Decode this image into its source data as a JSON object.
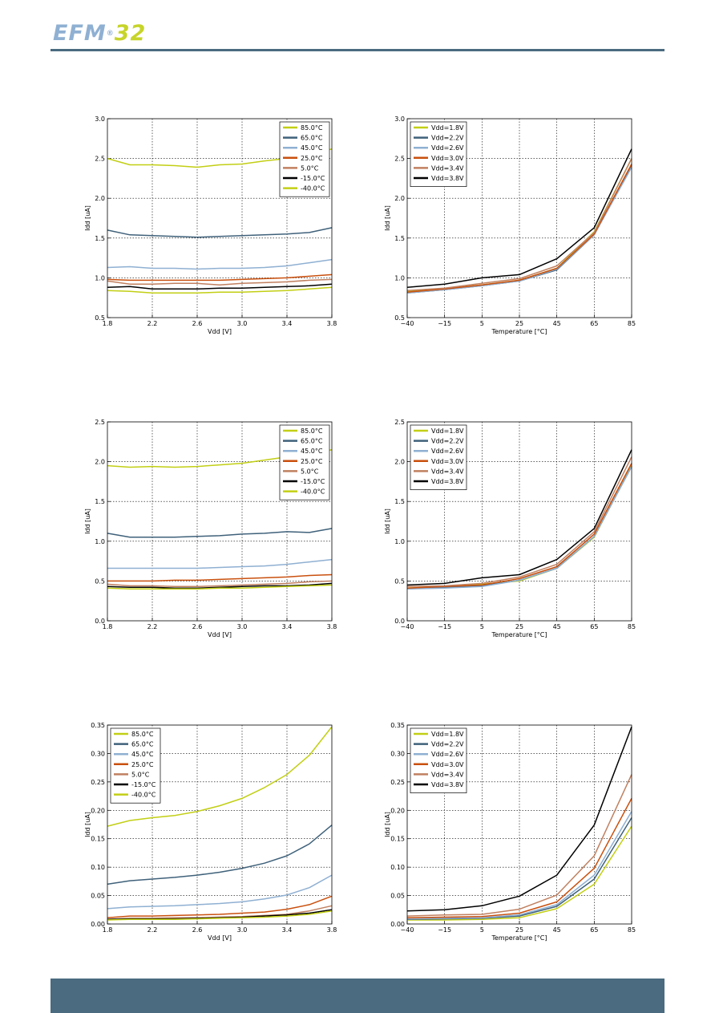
{
  "header": {
    "logo_text": "EFM",
    "logo_reg": "®",
    "logo_num": "32",
    "colors": {
      "logo_primary": "#8fb0d2",
      "logo_accent": "#c7d42a",
      "rule": "#4a6b80"
    }
  },
  "footer": {
    "color": "#4a6b80"
  },
  "series_colors": {
    "temperature": [
      "#c2cf14",
      "#3f617a",
      "#8fb0d2",
      "#c9500e",
      "#c08060",
      "#000000",
      "#c2cf14"
    ],
    "voltage": [
      "#c2cf14",
      "#3f617a",
      "#8fb0d2",
      "#c9500e",
      "#c08060",
      "#000000"
    ]
  },
  "chart_data": [
    {
      "type": "line",
      "grid": true,
      "legend_position": "top-right",
      "xlabel": "Vdd [V]",
      "ylabel": "Idd [uA]",
      "xlim": [
        1.8,
        3.8
      ],
      "ylim": [
        0.5,
        3.0
      ],
      "xticks": [
        "1.8",
        "2.2",
        "2.6",
        "3.0",
        "3.4",
        "3.8"
      ],
      "yticks": [
        "0.5",
        "1.0",
        "1.5",
        "2.0",
        "2.5",
        "3.0"
      ],
      "x": [
        1.8,
        2.0,
        2.2,
        2.4,
        2.6,
        2.8,
        3.0,
        3.2,
        3.4,
        3.6,
        3.8
      ],
      "series": [
        {
          "name": "85.0°C",
          "values": [
            2.5,
            2.42,
            2.42,
            2.41,
            2.39,
            2.42,
            2.43,
            2.47,
            2.5,
            2.54,
            2.62
          ]
        },
        {
          "name": "65.0°C",
          "values": [
            1.6,
            1.54,
            1.53,
            1.52,
            1.51,
            1.52,
            1.53,
            1.54,
            1.55,
            1.57,
            1.63
          ]
        },
        {
          "name": "45.0°C",
          "values": [
            1.13,
            1.14,
            1.12,
            1.12,
            1.11,
            1.12,
            1.12,
            1.13,
            1.15,
            1.19,
            1.23
          ]
        },
        {
          "name": "25.0°C",
          "values": [
            0.98,
            0.97,
            0.97,
            0.97,
            0.97,
            0.97,
            0.98,
            0.99,
            1.0,
            1.02,
            1.04
          ]
        },
        {
          "name": "5.0°C",
          "values": [
            0.96,
            0.92,
            0.92,
            0.93,
            0.93,
            0.91,
            0.93,
            0.94,
            0.95,
            0.97,
            0.98
          ]
        },
        {
          "name": "-15.0°C",
          "values": [
            0.88,
            0.89,
            0.86,
            0.86,
            0.86,
            0.87,
            0.87,
            0.88,
            0.89,
            0.9,
            0.92
          ]
        },
        {
          "name": "-40.0°C",
          "values": [
            0.84,
            0.83,
            0.81,
            0.81,
            0.81,
            0.82,
            0.82,
            0.83,
            0.84,
            0.86,
            0.88
          ]
        }
      ]
    },
    {
      "type": "line",
      "grid": true,
      "legend_position": "top-left",
      "xlabel": "Temperature [°C]",
      "ylabel": "Idd [uA]",
      "ylim": [
        0.5,
        3.0
      ],
      "xticks": [
        "−40",
        "−15",
        "5",
        "25",
        "45",
        "65",
        "85"
      ],
      "yticks": [
        "0.5",
        "1.0",
        "1.5",
        "2.0",
        "2.5",
        "3.0"
      ],
      "categories": [
        "−40",
        "−15",
        "5",
        "25",
        "45",
        "65",
        "85"
      ],
      "series": [
        {
          "name": "Vdd=1.8V",
          "values": [
            0.83,
            0.86,
            0.91,
            0.97,
            1.12,
            1.58,
            2.5
          ]
        },
        {
          "name": "Vdd=2.2V",
          "values": [
            0.81,
            0.85,
            0.9,
            0.96,
            1.1,
            1.54,
            2.42
          ]
        },
        {
          "name": "Vdd=2.6V",
          "values": [
            0.81,
            0.85,
            0.9,
            0.96,
            1.11,
            1.54,
            2.39
          ]
        },
        {
          "name": "Vdd=3.0V",
          "values": [
            0.82,
            0.86,
            0.91,
            0.97,
            1.12,
            1.55,
            2.43
          ]
        },
        {
          "name": "Vdd=3.4V",
          "values": [
            0.84,
            0.87,
            0.93,
            0.99,
            1.15,
            1.57,
            2.5
          ]
        },
        {
          "name": "Vdd=3.8V",
          "values": [
            0.88,
            0.92,
            1.0,
            1.04,
            1.24,
            1.63,
            2.62
          ]
        }
      ]
    },
    {
      "type": "line",
      "grid": true,
      "legend_position": "top-right",
      "xlabel": "Vdd [V]",
      "ylabel": "Idd [uA]",
      "xlim": [
        1.8,
        3.8
      ],
      "ylim": [
        0.0,
        2.5
      ],
      "xticks": [
        "1.8",
        "2.2",
        "2.6",
        "3.0",
        "3.4",
        "3.8"
      ],
      "yticks": [
        "0.0",
        "0.5",
        "1.0",
        "1.5",
        "2.0",
        "2.5"
      ],
      "x": [
        1.8,
        2.0,
        2.2,
        2.4,
        2.6,
        2.8,
        3.0,
        3.2,
        3.4,
        3.6,
        3.8
      ],
      "series": [
        {
          "name": "85.0°C",
          "values": [
            1.95,
            1.93,
            1.94,
            1.93,
            1.94,
            1.96,
            1.98,
            2.02,
            2.06,
            2.1,
            2.15
          ]
        },
        {
          "name": "65.0°C",
          "values": [
            1.1,
            1.05,
            1.05,
            1.05,
            1.06,
            1.07,
            1.09,
            1.1,
            1.12,
            1.11,
            1.16
          ]
        },
        {
          "name": "45.0°C",
          "values": [
            0.66,
            0.66,
            0.66,
            0.66,
            0.66,
            0.67,
            0.68,
            0.69,
            0.71,
            0.74,
            0.77
          ]
        },
        {
          "name": "25.0°C",
          "values": [
            0.5,
            0.5,
            0.5,
            0.51,
            0.51,
            0.52,
            0.53,
            0.54,
            0.55,
            0.57,
            0.58
          ]
        },
        {
          "name": "5.0°C",
          "values": [
            0.46,
            0.44,
            0.44,
            0.43,
            0.43,
            0.44,
            0.45,
            0.46,
            0.47,
            0.49,
            0.5
          ]
        },
        {
          "name": "-15.0°C",
          "values": [
            0.43,
            0.42,
            0.42,
            0.41,
            0.41,
            0.42,
            0.43,
            0.44,
            0.44,
            0.45,
            0.47
          ]
        },
        {
          "name": "-40.0°C",
          "values": [
            0.41,
            0.4,
            0.4,
            0.4,
            0.4,
            0.41,
            0.41,
            0.42,
            0.43,
            0.44,
            0.45
          ]
        }
      ]
    },
    {
      "type": "line",
      "grid": true,
      "legend_position": "top-left",
      "xlabel": "Temperature [°C]",
      "ylabel": "Idd [uA]",
      "ylim": [
        0.0,
        2.5
      ],
      "xticks": [
        "−40",
        "−15",
        "5",
        "25",
        "45",
        "65",
        "85"
      ],
      "yticks": [
        "0.0",
        "0.5",
        "1.0",
        "1.5",
        "2.0",
        "2.5"
      ],
      "categories": [
        "−40",
        "−15",
        "5",
        "25",
        "45",
        "65",
        "85"
      ],
      "series": [
        {
          "name": "Vdd=1.8V",
          "values": [
            0.41,
            0.43,
            0.46,
            0.5,
            0.66,
            1.05,
            1.95
          ]
        },
        {
          "name": "Vdd=2.2V",
          "values": [
            0.4,
            0.42,
            0.44,
            0.51,
            0.66,
            1.06,
            1.94
          ]
        },
        {
          "name": "Vdd=2.6V",
          "values": [
            0.4,
            0.41,
            0.43,
            0.51,
            0.66,
            1.06,
            1.94
          ]
        },
        {
          "name": "Vdd=3.0V",
          "values": [
            0.41,
            0.43,
            0.45,
            0.53,
            0.68,
            1.09,
            1.98
          ]
        },
        {
          "name": "Vdd=3.4V",
          "values": [
            0.43,
            0.44,
            0.47,
            0.55,
            0.71,
            1.12,
            2.06
          ]
        },
        {
          "name": "Vdd=3.8V",
          "values": [
            0.45,
            0.47,
            0.54,
            0.58,
            0.77,
            1.16,
            2.15
          ]
        }
      ]
    },
    {
      "type": "line",
      "grid": true,
      "legend_position": "top-left",
      "xlabel": "Vdd [V]",
      "ylabel": "Idd [uA]",
      "xlim": [
        1.8,
        3.8
      ],
      "ylim": [
        0.0,
        0.35
      ],
      "xticks": [
        "1.8",
        "2.2",
        "2.6",
        "3.0",
        "3.4",
        "3.8"
      ],
      "yticks": [
        "0.00",
        "0.05",
        "0.10",
        "0.15",
        "0.20",
        "0.25",
        "0.30",
        "0.35"
      ],
      "x": [
        1.8,
        2.0,
        2.2,
        2.4,
        2.6,
        2.8,
        3.0,
        3.2,
        3.4,
        3.6,
        3.8
      ],
      "series": [
        {
          "name": "85.0°C",
          "values": [
            0.172,
            0.182,
            0.187,
            0.191,
            0.198,
            0.208,
            0.221,
            0.24,
            0.263,
            0.297,
            0.347
          ]
        },
        {
          "name": "65.0°C",
          "values": [
            0.07,
            0.076,
            0.079,
            0.082,
            0.086,
            0.091,
            0.098,
            0.107,
            0.12,
            0.141,
            0.174
          ]
        },
        {
          "name": "45.0°C",
          "values": [
            0.027,
            0.03,
            0.031,
            0.032,
            0.034,
            0.036,
            0.039,
            0.044,
            0.051,
            0.064,
            0.086
          ]
        },
        {
          "name": "25.0°C",
          "values": [
            0.011,
            0.014,
            0.014,
            0.015,
            0.016,
            0.017,
            0.019,
            0.021,
            0.026,
            0.034,
            0.049
          ]
        },
        {
          "name": "5.0°C",
          "values": [
            0.008,
            0.01,
            0.01,
            0.011,
            0.011,
            0.012,
            0.013,
            0.015,
            0.017,
            0.023,
            0.032
          ]
        },
        {
          "name": "-15.0°C",
          "values": [
            0.008,
            0.009,
            0.009,
            0.009,
            0.01,
            0.011,
            0.012,
            0.014,
            0.016,
            0.019,
            0.025
          ]
        },
        {
          "name": "-40.0°C",
          "values": [
            0.007,
            0.008,
            0.008,
            0.008,
            0.009,
            0.01,
            0.011,
            0.012,
            0.014,
            0.017,
            0.023
          ]
        }
      ]
    },
    {
      "type": "line",
      "grid": true,
      "legend_position": "top-left",
      "xlabel": "Temperature [°C]",
      "ylabel": "Idd [uA]",
      "ylim": [
        0.0,
        0.35
      ],
      "xticks": [
        "−40",
        "−15",
        "5",
        "25",
        "45",
        "65",
        "85"
      ],
      "yticks": [
        "0.00",
        "0.05",
        "0.10",
        "0.15",
        "0.20",
        "0.25",
        "0.30",
        "0.35"
      ],
      "categories": [
        "−40",
        "−15",
        "5",
        "25",
        "45",
        "65",
        "85"
      ],
      "series": [
        {
          "name": "Vdd=1.8V",
          "values": [
            0.007,
            0.007,
            0.008,
            0.011,
            0.027,
            0.07,
            0.172
          ]
        },
        {
          "name": "Vdd=2.2V",
          "values": [
            0.008,
            0.009,
            0.01,
            0.014,
            0.031,
            0.079,
            0.187
          ]
        },
        {
          "name": "Vdd=2.6V",
          "values": [
            0.009,
            0.01,
            0.011,
            0.016,
            0.034,
            0.086,
            0.198
          ]
        },
        {
          "name": "Vdd=3.0V",
          "values": [
            0.011,
            0.012,
            0.013,
            0.019,
            0.039,
            0.098,
            0.221
          ]
        },
        {
          "name": "Vdd=3.4V",
          "values": [
            0.014,
            0.016,
            0.017,
            0.026,
            0.051,
            0.12,
            0.263
          ]
        },
        {
          "name": "Vdd=3.8V",
          "values": [
            0.023,
            0.025,
            0.032,
            0.049,
            0.086,
            0.174,
            0.347
          ]
        }
      ]
    }
  ]
}
